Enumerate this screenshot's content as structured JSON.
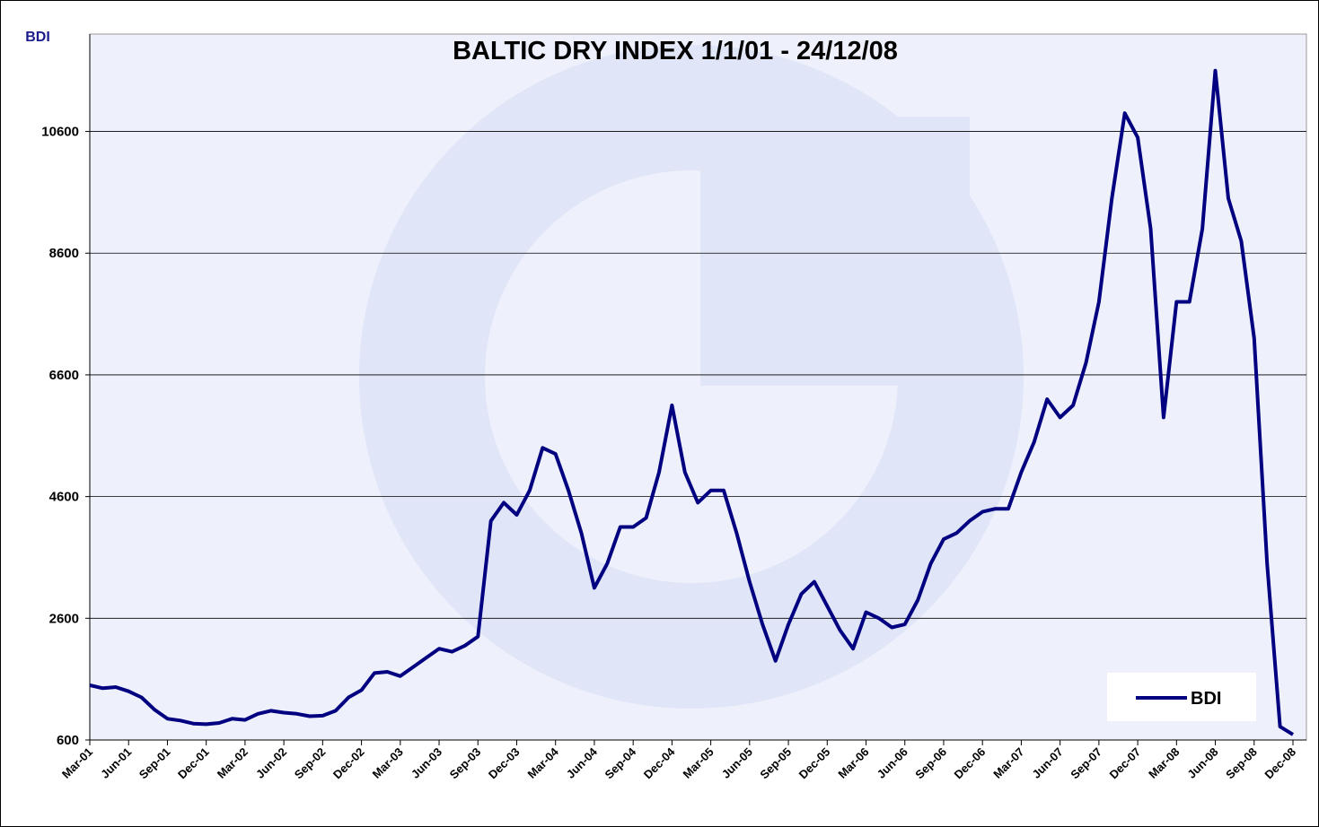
{
  "chart_data": {
    "type": "line",
    "title": "BALTIC DRY INDEX 1/1/01 - 24/12/08",
    "y_axis_label": "BDI",
    "categories": [
      "Mar-01",
      null,
      null,
      "Jun-01",
      null,
      null,
      "Sep-01",
      null,
      null,
      "Dec-01",
      null,
      null,
      "Mar-02",
      null,
      null,
      "Jun-02",
      null,
      null,
      "Sep-02",
      null,
      null,
      "Dec-02",
      null,
      null,
      "Mar-03",
      null,
      null,
      "Jun-03",
      null,
      null,
      "Sep-03",
      null,
      null,
      "Dec-03",
      null,
      null,
      "Mar-04",
      null,
      null,
      "Jun-04",
      null,
      null,
      "Sep-04",
      null,
      null,
      "Dec-04",
      null,
      null,
      "Mar-05",
      null,
      null,
      "Jun-05",
      null,
      null,
      "Sep-05",
      null,
      null,
      "Dec-05",
      null,
      null,
      "Mar-06",
      null,
      null,
      "Jun-06",
      null,
      null,
      "Sep-06",
      null,
      null,
      "Dec-06",
      null,
      null,
      "Mar-07",
      null,
      null,
      "Jun-07",
      null,
      null,
      "Sep-07",
      null,
      null,
      "Dec-07",
      null,
      null,
      "Mar-08",
      null,
      null,
      "Jun-08",
      null,
      null,
      "Sep-08",
      null,
      null,
      "Dec-08"
    ],
    "series": [
      {
        "name": "BDI",
        "color": "#000080",
        "values": [
          1500,
          1450,
          1470,
          1400,
          1300,
          1100,
          950,
          920,
          870,
          860,
          880,
          950,
          930,
          1030,
          1080,
          1050,
          1030,
          990,
          1000,
          1080,
          1300,
          1420,
          1700,
          1720,
          1650,
          1800,
          1950,
          2100,
          2050,
          2150,
          2300,
          4200,
          4500,
          4300,
          4700,
          5400,
          5300,
          4700,
          4000,
          3100,
          3500,
          4100,
          4100,
          4250,
          5000,
          6100,
          5000,
          4500,
          4700,
          4700,
          4000,
          3200,
          2500,
          1900,
          2500,
          3000,
          3200,
          2800,
          2400,
          2100,
          2700,
          2600,
          2450,
          2500,
          2900,
          3500,
          3900,
          4000,
          4200,
          4350,
          4400,
          4400,
          5000,
          5500,
          6200,
          5900,
          6100,
          6800,
          7800,
          9500,
          10900,
          10500,
          9000,
          5900,
          7800,
          7800,
          9000,
          11600,
          9500,
          8800,
          7200,
          3500,
          820,
          690
        ]
      }
    ],
    "ylim": [
      600,
      12200
    ],
    "yticks": [
      600,
      2600,
      4600,
      6600,
      8600,
      10600
    ],
    "grid": true,
    "legend": "lower right"
  }
}
